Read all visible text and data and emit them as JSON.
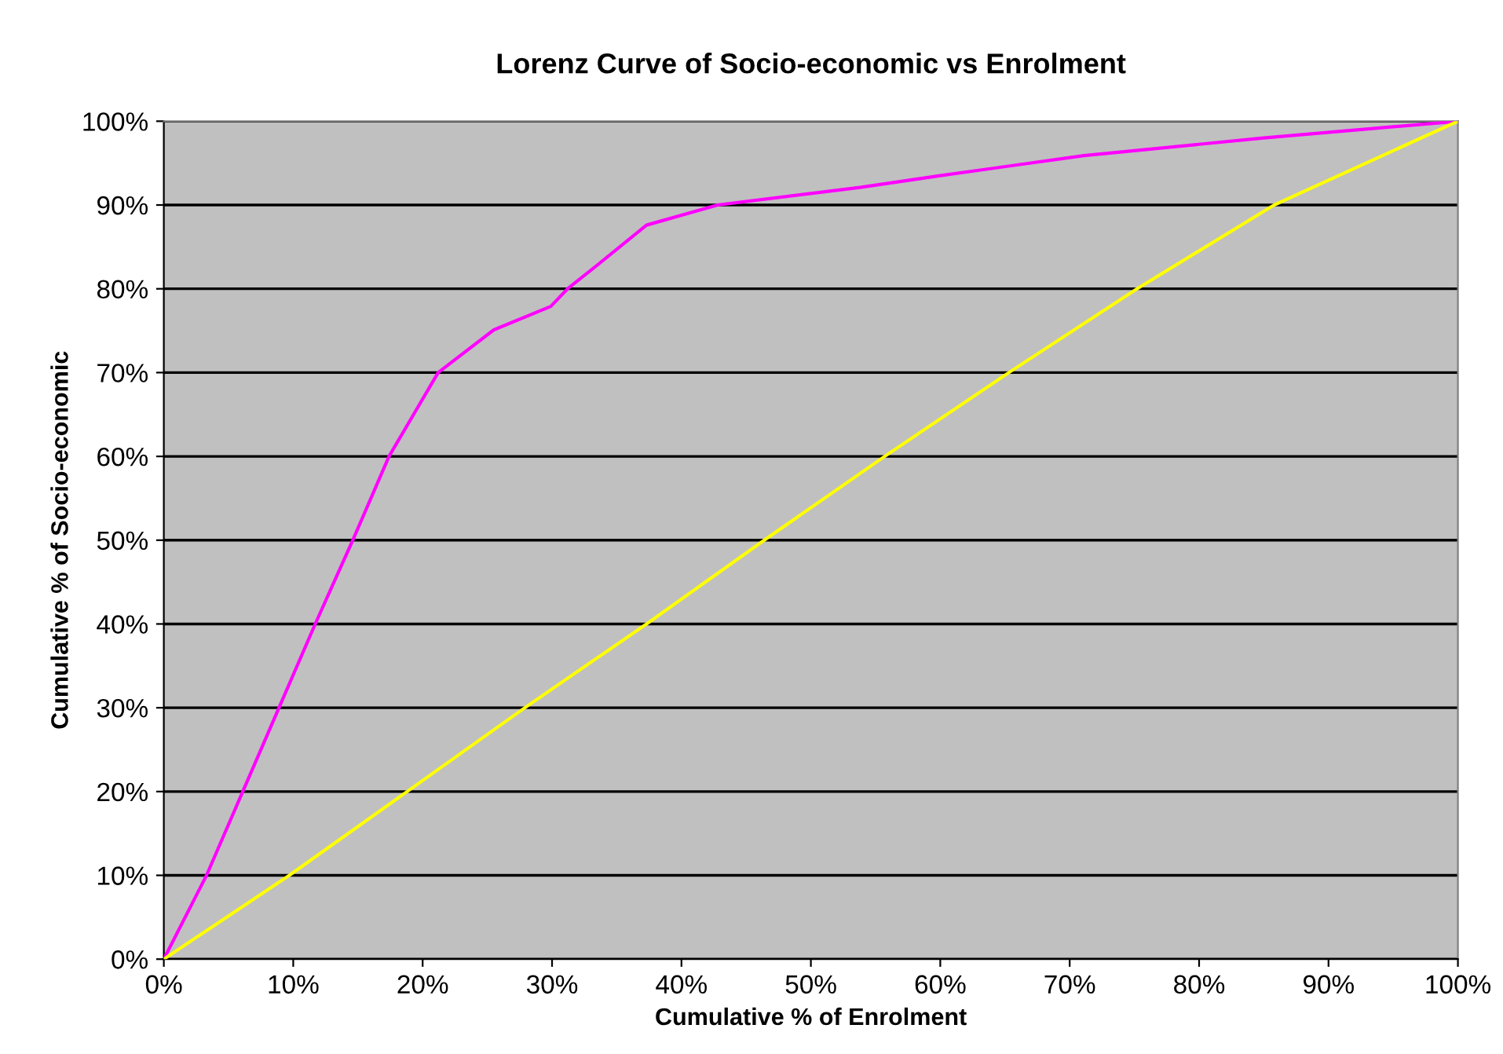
{
  "chart_data": {
    "type": "line",
    "title": "Lorenz Curve of Socio-economic vs Enrolment",
    "xlabel": "Cumulative % of Enrolment",
    "ylabel": "Cumulative % of Socio-economic",
    "series": [
      {
        "color": "#ff00ff",
        "x": [
          0,
          3.3,
          6.1,
          8.9,
          11.7,
          14.6,
          17.4,
          21.2,
          25.5,
          29.9,
          31.2,
          34.2,
          37.3,
          42.8,
          53.8,
          60,
          71.1,
          85,
          100
        ],
        "values": [
          0,
          10,
          20,
          30,
          40,
          50,
          60,
          70,
          75.1,
          77.9,
          80,
          83.7,
          87.6,
          90,
          92.1,
          93.5,
          95.9,
          98,
          100
        ]
      },
      {
        "color": "#ffff00",
        "x": [
          0,
          9.7,
          18.8,
          27.9,
          37.3,
          46.4,
          55.7,
          65.3,
          75.2,
          85.8,
          100
        ],
        "values": [
          0,
          10,
          20,
          30,
          40,
          50,
          60,
          70,
          80,
          90,
          100
        ]
      }
    ],
    "xlim": [
      0,
      100
    ],
    "ylim": [
      0,
      100
    ],
    "xticks": [
      {
        "value": 0,
        "label": "0%"
      },
      {
        "value": 10,
        "label": "10%"
      },
      {
        "value": 20,
        "label": "20%"
      },
      {
        "value": 30,
        "label": "30%"
      },
      {
        "value": 40,
        "label": "40%"
      },
      {
        "value": 50,
        "label": "50%"
      },
      {
        "value": 60,
        "label": "60%"
      },
      {
        "value": 70,
        "label": "70%"
      },
      {
        "value": 80,
        "label": "80%"
      },
      {
        "value": 90,
        "label": "90%"
      },
      {
        "value": 100,
        "label": "100%"
      }
    ],
    "yticks": [
      {
        "value": 0,
        "label": "0%"
      },
      {
        "value": 10,
        "label": "10%"
      },
      {
        "value": 20,
        "label": "20%"
      },
      {
        "value": 30,
        "label": "30%"
      },
      {
        "value": 40,
        "label": "40%"
      },
      {
        "value": 50,
        "label": "50%"
      },
      {
        "value": 60,
        "label": "60%"
      },
      {
        "value": 70,
        "label": "70%"
      },
      {
        "value": 80,
        "label": "80%"
      },
      {
        "value": 90,
        "label": "90%"
      },
      {
        "value": 100,
        "label": "100%"
      }
    ],
    "grid": "y",
    "marker": "none",
    "line_style": "solid",
    "legend": false
  }
}
